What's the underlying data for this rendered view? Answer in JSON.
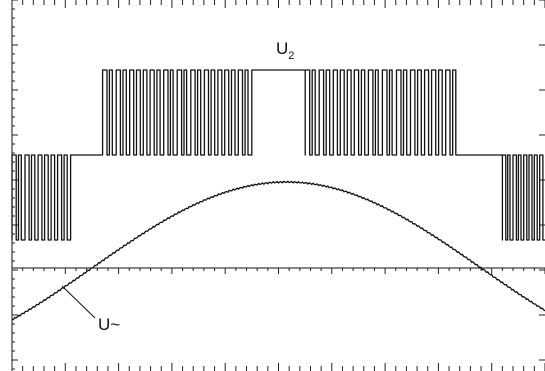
{
  "chart_data": {
    "type": "line",
    "title": "",
    "xlabel": "",
    "ylabel": "",
    "grid": false,
    "time_divisions": 10,
    "x_range": [
      0,
      1
    ],
    "series": [
      {
        "name": "U2",
        "label_main": "U",
        "label_sub": "2",
        "description_levels": {
          "low": -1,
          "mid": 0,
          "high": 1
        },
        "segments": [
          {
            "from": 0.0,
            "to": 0.11,
            "form": "pwm",
            "levels": [
              -1,
              0
            ],
            "pulses": 9
          },
          {
            "from": 0.11,
            "to": 0.17,
            "form": "flat",
            "level": 0
          },
          {
            "from": 0.17,
            "to": 0.45,
            "form": "pwm",
            "levels": [
              0,
              1
            ],
            "pulses": 22
          },
          {
            "from": 0.45,
            "to": 0.55,
            "form": "flat",
            "level": 1
          },
          {
            "from": 0.55,
            "to": 0.84,
            "form": "pwm",
            "levels": [
              0,
              1
            ],
            "pulses": 22
          },
          {
            "from": 0.84,
            "to": 0.92,
            "form": "flat",
            "level": 0
          },
          {
            "from": 0.92,
            "to": 1.0,
            "form": "pwm",
            "levels": [
              -1,
              0
            ],
            "pulses": 8
          }
        ]
      },
      {
        "name": "U~",
        "label_main": "U~",
        "form": "sine",
        "peak_x": 0.51,
        "zero_crossings": [
          0.15,
          0.88
        ]
      }
    ]
  }
}
